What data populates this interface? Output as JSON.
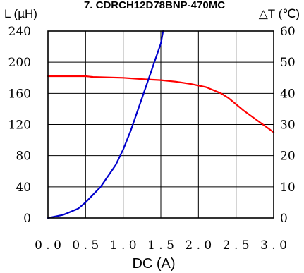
{
  "chart_data": {
    "type": "line",
    "title": "7. CDRCH12D78BNP-470MC",
    "xlabel": "DC (A)",
    "ylabel_left": "L (µH)",
    "ylabel_right": "△T (℃)",
    "xlim": [
      0,
      3.0
    ],
    "ylim_left": [
      0,
      240
    ],
    "ylim_right": [
      0,
      60
    ],
    "grid": true,
    "x_ticks": [
      "0.0",
      "0.5",
      "1.0",
      "1.5",
      "2.0",
      "2.5",
      "3.0"
    ],
    "y_left_ticks": [
      "0",
      "40",
      "80",
      "120",
      "160",
      "200",
      "240"
    ],
    "y_right_ticks": [
      "0",
      "10",
      "20",
      "30",
      "40",
      "50",
      "60"
    ],
    "series": [
      {
        "axis": "left",
        "color": "#ff0000",
        "x": [
          0.0,
          0.5,
          0.6,
          1.0,
          1.3,
          1.5,
          1.7,
          1.9,
          2.1,
          2.3,
          2.4,
          2.5,
          2.6,
          2.8,
          3.0
        ],
        "y": [
          182,
          182,
          181,
          180,
          178,
          177,
          175,
          172,
          168,
          160,
          154,
          146,
          138,
          124,
          110
        ]
      },
      {
        "axis": "right",
        "color": "#0000cc",
        "x": [
          0.0,
          0.2,
          0.4,
          0.5,
          0.7,
          0.9,
          1.0,
          1.1,
          1.2,
          1.3,
          1.4,
          1.5,
          1.53
        ],
        "y": [
          0,
          1,
          3,
          5,
          10,
          17,
          22,
          28,
          35,
          42,
          49,
          56,
          60
        ]
      }
    ]
  }
}
